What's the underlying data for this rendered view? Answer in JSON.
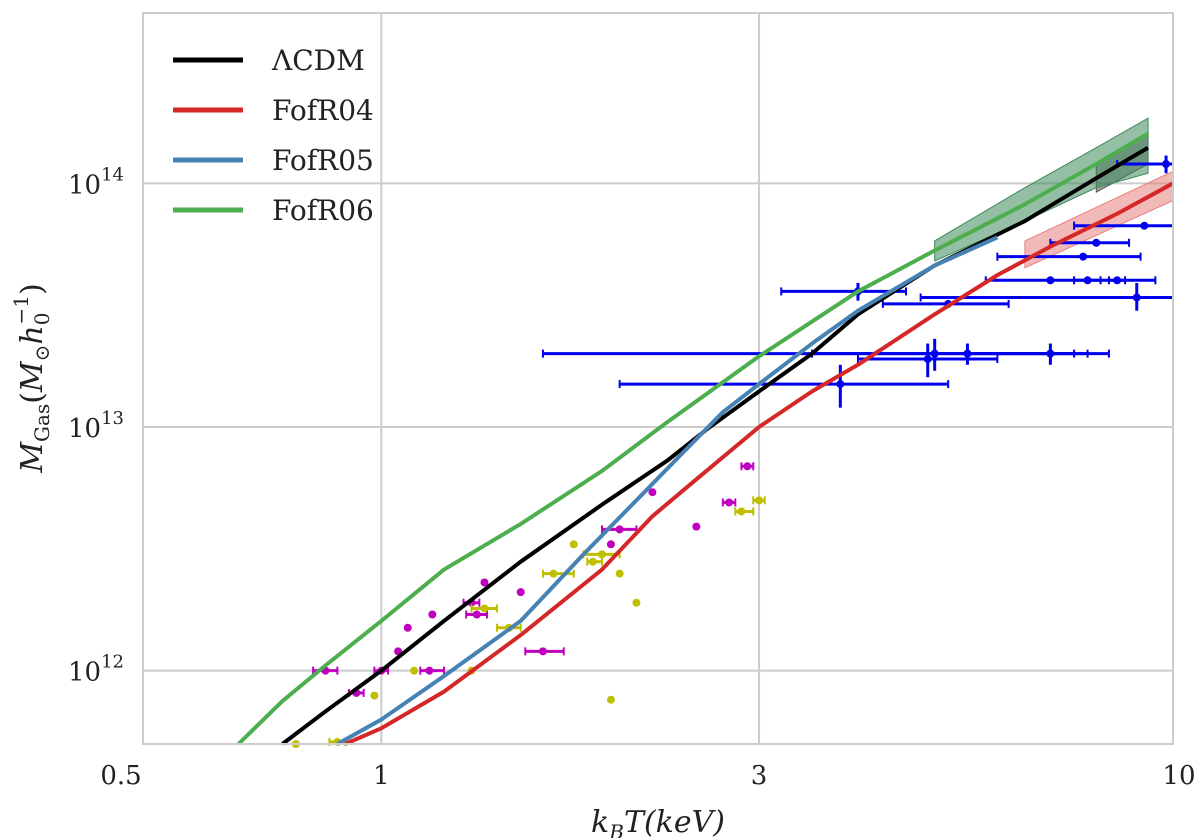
{
  "chart_data": {
    "type": "line",
    "title": "",
    "xlabel": "k_B T(keV)",
    "ylabel": "M_Gas(M_⊙ h_0^-1)",
    "xscale": "log",
    "yscale": "log",
    "xlim": [
      0.5,
      10
    ],
    "ylim": [
      500000000000.0,
      500000000000000.0
    ],
    "grid": true,
    "legend_position": "top-left",
    "x_ticks": [
      {
        "value": 0.5,
        "label": "0.5"
      },
      {
        "value": 1,
        "label": "1"
      },
      {
        "value": 3,
        "label": "3"
      },
      {
        "value": 10,
        "label": "10"
      }
    ],
    "y_ticks": [
      {
        "value": 1000000000000.0,
        "base": "10",
        "exp": "12"
      },
      {
        "value": 10000000000000.0,
        "base": "10",
        "exp": "13"
      },
      {
        "value": 100000000000000.0,
        "base": "10",
        "exp": "14"
      }
    ],
    "series": [
      {
        "name": "ΛCDM",
        "color": "#000000",
        "band_color": "#555555",
        "x": [
          0.75,
          0.85,
          1.0,
          1.2,
          1.5,
          1.9,
          2.3,
          2.6,
          3.0,
          3.5,
          4.0,
          5.0,
          6.5,
          8.0,
          9.3
        ],
        "y": [
          500000000000.0,
          680000000000.0,
          1000000000000.0,
          1600000000000.0,
          2800000000000.0,
          4800000000000.0,
          7300000000000.0,
          10000000000000.0,
          14000000000000.0,
          20000000000000.0,
          29000000000000.0,
          46000000000000.0,
          70000000000000.0,
          105000000000000.0,
          140000000000000.0
        ],
        "band_x": [
          8.0,
          9.3
        ],
        "band_y_low": [
          92000000000000.0,
          120000000000000.0
        ],
        "band_y_high": [
          120000000000000.0,
          160000000000000.0
        ]
      },
      {
        "name": "FofR04",
        "color": "#d62728",
        "band_color": "#e88080",
        "x": [
          0.9,
          1.0,
          1.2,
          1.5,
          1.9,
          2.2,
          2.5,
          3.0,
          3.5,
          4.0,
          5.0,
          6.0,
          7.0,
          8.5,
          10.0
        ],
        "y": [
          500000000000.0,
          580000000000.0,
          820000000000.0,
          1400000000000.0,
          2600000000000.0,
          4300000000000.0,
          6100000000000.0,
          10000000000000.0,
          14000000000000.0,
          18000000000000.0,
          29000000000000.0,
          42000000000000.0,
          55000000000000.0,
          75000000000000.0,
          100000000000000.0
        ],
        "band_x": [
          6.5,
          10.0
        ],
        "band_y_low": [
          45000000000000.0,
          85000000000000.0
        ],
        "band_y_high": [
          58000000000000.0,
          112000000000000.0
        ]
      },
      {
        "name": "FofR05",
        "color": "#4682b4",
        "band_color": "#7fa8cc",
        "x": [
          0.88,
          1.0,
          1.2,
          1.5,
          1.8,
          2.1,
          2.4,
          2.7,
          3.0,
          3.5,
          4.0,
          5.0,
          6.0
        ],
        "y": [
          500000000000.0,
          630000000000.0,
          950000000000.0,
          1600000000000.0,
          3000000000000.0,
          5000000000000.0,
          7800000000000.0,
          11500000000000.0,
          15000000000000.0,
          22000000000000.0,
          30000000000000.0,
          46000000000000.0,
          60000000000000.0
        ]
      },
      {
        "name": "FofR06",
        "color": "#4cae4c",
        "band_color": "#3d8a5a",
        "x": [
          0.66,
          0.75,
          0.85,
          1.0,
          1.2,
          1.5,
          1.9,
          2.3,
          3.0,
          4.0,
          5.0,
          6.5,
          8.0,
          9.3
        ],
        "y": [
          500000000000.0,
          750000000000.0,
          1050000000000.0,
          1600000000000.0,
          2600000000000.0,
          4000000000000.0,
          6600000000000.0,
          10500000000000.0,
          19500000000000.0,
          36000000000000.0,
          53000000000000.0,
          82000000000000.0,
          120000000000000.0,
          160000000000000.0
        ],
        "band_x": [
          5.0,
          6.5,
          8.0,
          9.3
        ],
        "band_y_low": [
          48000000000000.0,
          70000000000000.0,
          96000000000000.0,
          110000000000000.0
        ],
        "band_y_high": [
          58000000000000.0,
          96000000000000.0,
          140000000000000.0,
          185000000000000.0
        ]
      }
    ],
    "observations": [
      {
        "name": "blue",
        "color": "#0000ee",
        "points": [
          {
            "x": 4.0,
            "y": 36000000000000.0,
            "xerr": [
              3.2,
              4.6
            ],
            "yerr": [
              33000000000000.0,
              39000000000000.0
            ]
          },
          {
            "x": 5.2,
            "y": 32000000000000.0,
            "xerr": [
              4.3,
              6.2
            ],
            "yerr": [
              31000000000000.0,
              33000000000000.0
            ]
          },
          {
            "x": 7.0,
            "y": 40000000000000.0,
            "xerr": [
              5.8,
              9.5
            ],
            "yerr": [
              39000000000000.0,
              41000000000000.0
            ]
          },
          {
            "x": 7.8,
            "y": 40000000000000.0,
            "xerr": [
              7.5,
              8.1
            ],
            "yerr": [
              39000000000000.0,
              41000000000000.0
            ]
          },
          {
            "x": 8.5,
            "y": 40000000000000.0,
            "xerr": [
              8.3,
              8.7
            ],
            "yerr": [
              39000000000000.0,
              41000000000000.0
            ]
          },
          {
            "x": 9.0,
            "y": 34000000000000.0,
            "xerr": [
              4.8,
              10.5
            ],
            "yerr": [
              30000000000000.0,
              39000000000000.0
            ]
          },
          {
            "x": 7.7,
            "y": 50000000000000.0,
            "xerr": [
              6.0,
              9.1
            ],
            "yerr": [
              49000000000000.0,
              51000000000000.0
            ]
          },
          {
            "x": 8.0,
            "y": 57000000000000.0,
            "xerr": [
              7.0,
              8.8
            ],
            "yerr": [
              55000000000000.0,
              59000000000000.0
            ]
          },
          {
            "x": 9.2,
            "y": 67000000000000.0,
            "xerr": [
              7.5,
              10.5
            ],
            "yerr": [
              65000000000000.0,
              69000000000000.0
            ]
          },
          {
            "x": 9.8,
            "y": 120000000000000.0,
            "xerr": [
              8.5,
              11.0
            ],
            "yerr": [
              110000000000000.0,
              130000000000000.0
            ]
          },
          {
            "x": 5.0,
            "y": 20000000000000.0,
            "xerr": [
              1.6,
              7.8
            ],
            "yerr": [
              17000000000000.0,
              23000000000000.0
            ]
          },
          {
            "x": 5.5,
            "y": 20000000000000.0,
            "xerr": [
              3.5,
              7.5
            ],
            "yerr": [
              18000000000000.0,
              22000000000000.0
            ]
          },
          {
            "x": 7.0,
            "y": 20000000000000.0,
            "xerr": [
              5.5,
              8.3
            ],
            "yerr": [
              18000000000000.0,
              22000000000000.0
            ]
          },
          {
            "x": 4.9,
            "y": 19000000000000.0,
            "xerr": [
              4.0,
              6.0
            ],
            "yerr": [
              16000000000000.0,
              22000000000000.0
            ]
          },
          {
            "x": 3.8,
            "y": 15000000000000.0,
            "xerr": [
              2.0,
              5.2
            ],
            "yerr": [
              12000000000000.0,
              18000000000000.0
            ]
          }
        ]
      },
      {
        "name": "magenta",
        "color": "#bf00bf",
        "points": [
          {
            "x": 0.85,
            "y": 1000000000000.0,
            "xerr": [
              0.82,
              0.88
            ]
          },
          {
            "x": 0.93,
            "y": 810000000000.0,
            "xerr": [
              0.91,
              0.95
            ]
          },
          {
            "x": 1.0,
            "y": 1000000000000.0,
            "xerr": [
              0.98,
              1.02
            ]
          },
          {
            "x": 1.05,
            "y": 1200000000000.0
          },
          {
            "x": 1.08,
            "y": 1500000000000.0
          },
          {
            "x": 1.15,
            "y": 1000000000000.0,
            "xerr": [
              1.12,
              1.2
            ]
          },
          {
            "x": 1.16,
            "y": 1700000000000.0
          },
          {
            "x": 1.3,
            "y": 1900000000000.0,
            "xerr": [
              1.27,
              1.33
            ]
          },
          {
            "x": 1.32,
            "y": 1700000000000.0,
            "xerr": [
              1.28,
              1.36
            ]
          },
          {
            "x": 1.35,
            "y": 2300000000000.0
          },
          {
            "x": 1.5,
            "y": 2100000000000.0
          },
          {
            "x": 1.6,
            "y": 1200000000000.0,
            "xerr": [
              1.52,
              1.7
            ]
          },
          {
            "x": 1.95,
            "y": 3300000000000.0
          },
          {
            "x": 2.0,
            "y": 3800000000000.0,
            "xerr": [
              1.9,
              2.1
            ]
          },
          {
            "x": 2.2,
            "y": 5400000000000.0
          },
          {
            "x": 2.5,
            "y": 3900000000000.0
          },
          {
            "x": 2.75,
            "y": 4900000000000.0,
            "xerr": [
              2.7,
              2.8
            ]
          },
          {
            "x": 2.9,
            "y": 6900000000000.0,
            "xerr": [
              2.85,
              2.95
            ]
          }
        ]
      },
      {
        "name": "yellow",
        "color": "#bfbf00",
        "points": [
          {
            "x": 0.78,
            "y": 500000000000.0
          },
          {
            "x": 0.88,
            "y": 510000000000.0,
            "xerr": [
              0.86,
              0.9
            ]
          },
          {
            "x": 0.98,
            "y": 790000000000.0
          },
          {
            "x": 1.1,
            "y": 1000000000000.0
          },
          {
            "x": 1.3,
            "y": 1000000000000.0
          },
          {
            "x": 1.35,
            "y": 1800000000000.0,
            "xerr": [
              1.3,
              1.4
            ]
          },
          {
            "x": 1.45,
            "y": 1500000000000.0,
            "xerr": [
              1.4,
              1.5
            ]
          },
          {
            "x": 1.65,
            "y": 2500000000000.0,
            "xerr": [
              1.6,
              1.75
            ]
          },
          {
            "x": 1.75,
            "y": 3300000000000.0
          },
          {
            "x": 1.85,
            "y": 2800000000000.0,
            "xerr": [
              1.82,
              1.9
            ]
          },
          {
            "x": 1.9,
            "y": 3000000000000.0,
            "xerr": [
              1.8,
              2.0
            ]
          },
          {
            "x": 2.0,
            "y": 2500000000000.0
          },
          {
            "x": 2.1,
            "y": 1900000000000.0
          },
          {
            "x": 1.95,
            "y": 760000000000.0
          },
          {
            "x": 2.85,
            "y": 4500000000000.0,
            "xerr": [
              2.8,
              2.95
            ]
          },
          {
            "x": 3.0,
            "y": 5000000000000.0,
            "xerr": [
              2.95,
              3.05
            ]
          }
        ]
      }
    ]
  }
}
